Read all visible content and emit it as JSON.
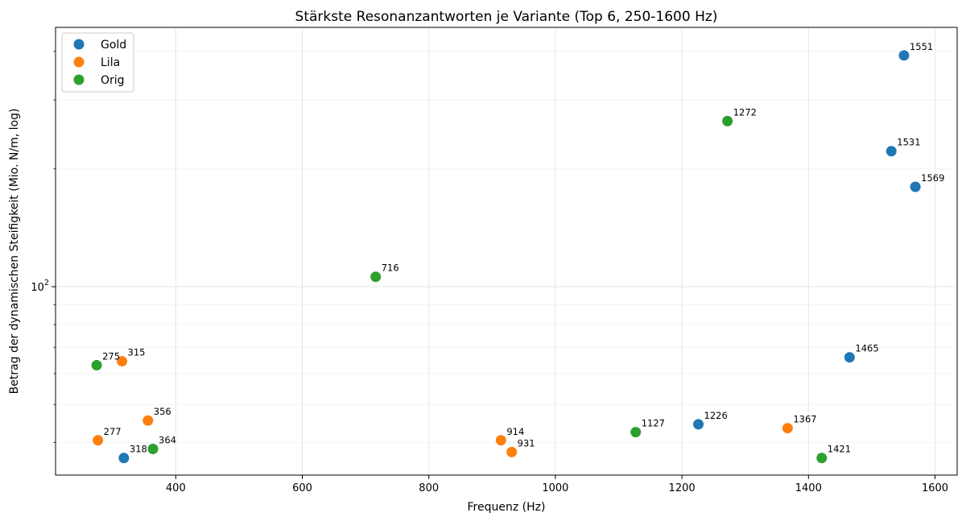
{
  "chart_data": {
    "type": "scatter",
    "title": "Stärkste Resonanzantworten je Variante (Top 6, 250-1600 Hz)",
    "xlabel": "Frequenz (Hz)",
    "ylabel": "Betrag der dynamischen Steifigkeit (Mio. N/m, log)",
    "xlim": [
      210,
      1635
    ],
    "ylim": [
      33,
      460
    ],
    "yscale": "log",
    "x_ticks": [
      400,
      600,
      800,
      1000,
      1200,
      1400,
      1600
    ],
    "x_tick_labels": [
      "400",
      "600",
      "800",
      "1000",
      "1200",
      "1400",
      "1600"
    ],
    "y_major_ticks": [
      100
    ],
    "y_major_tick_label_base": "10",
    "y_major_tick_label_exp": "2",
    "grid": true,
    "legend_position": "top-left",
    "series": [
      {
        "name": "Gold",
        "color": "#1f77b4",
        "points": [
          {
            "x": 1551,
            "y": 390,
            "label": "1551"
          },
          {
            "x": 1531,
            "y": 222,
            "label": "1531"
          },
          {
            "x": 1569,
            "y": 180,
            "label": "1569"
          },
          {
            "x": 1465,
            "y": 66,
            "label": "1465"
          },
          {
            "x": 1226,
            "y": 44.5,
            "label": "1226"
          },
          {
            "x": 318,
            "y": 36.5,
            "label": "318"
          }
        ]
      },
      {
        "name": "Lila",
        "color": "#ff7f0e",
        "points": [
          {
            "x": 315,
            "y": 64.5,
            "label": "315"
          },
          {
            "x": 356,
            "y": 45.5,
            "label": "356"
          },
          {
            "x": 277,
            "y": 40.5,
            "label": "277"
          },
          {
            "x": 914,
            "y": 40.5,
            "label": "914"
          },
          {
            "x": 931,
            "y": 37.8,
            "label": "931"
          },
          {
            "x": 1367,
            "y": 43.5,
            "label": "1367"
          }
        ]
      },
      {
        "name": "Orig",
        "color": "#2ca02c",
        "points": [
          {
            "x": 275,
            "y": 63,
            "label": "275"
          },
          {
            "x": 364,
            "y": 38.5,
            "label": "364"
          },
          {
            "x": 716,
            "y": 106,
            "label": "716"
          },
          {
            "x": 1127,
            "y": 42.5,
            "label": "1127"
          },
          {
            "x": 1272,
            "y": 265,
            "label": "1272"
          },
          {
            "x": 1421,
            "y": 36.5,
            "label": "1421"
          }
        ]
      }
    ]
  }
}
